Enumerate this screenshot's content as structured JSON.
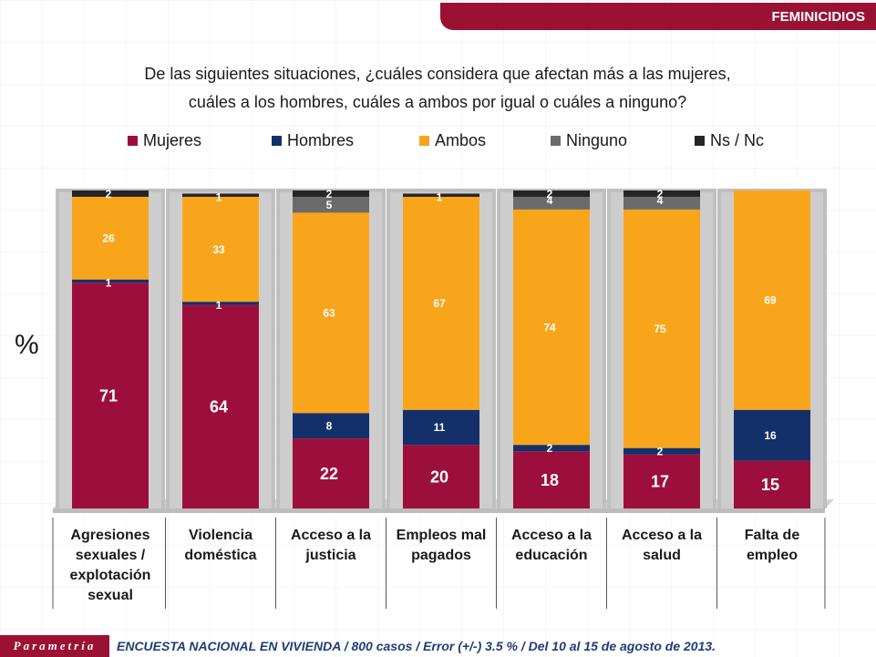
{
  "header": {
    "banner_title": "FEMINICIDIOS",
    "question_line1": "De las siguientes situaciones, ¿cuáles considera que afectan más a las mujeres,",
    "question_line2": "cuáles a los hombres, cuáles a ambos por igual o cuáles a ninguno?"
  },
  "footer": {
    "logo_text": "Parametría",
    "note": "ENCUESTA NACIONAL EN VIVIENDA / 800 casos / Error (+/-) 3.5 % / Del 10 al 15 de agosto de 2013."
  },
  "chart_data": {
    "type": "bar",
    "stacked": true,
    "ylabel": "%",
    "ylim": [
      0,
      100
    ],
    "legend_position": "top",
    "categories": [
      [
        "Agresiones",
        "sexuales /",
        "explotación",
        "sexual"
      ],
      [
        "Violencia",
        "doméstica"
      ],
      [
        "Acceso a la",
        "justicia"
      ],
      [
        "Empleos mal",
        "pagados"
      ],
      [
        "Acceso a la",
        "educación"
      ],
      [
        "Acceso a la",
        "salud"
      ],
      [
        "Falta de",
        "empleo"
      ]
    ],
    "series": [
      {
        "name": "Mujeres",
        "color": "#9c0f3c",
        "values": [
          71,
          64,
          22,
          20,
          18,
          17,
          15
        ]
      },
      {
        "name": "Hombres",
        "color": "#13306b",
        "values": [
          1,
          1,
          8,
          11,
          2,
          2,
          16
        ]
      },
      {
        "name": "Ambos",
        "color": "#f9a51b",
        "values": [
          26,
          33,
          63,
          67,
          74,
          75,
          69
        ]
      },
      {
        "name": "Ninguno",
        "color": "#6b6b6b",
        "values": [
          null,
          null,
          5,
          null,
          4,
          4,
          null
        ]
      },
      {
        "name": "Ns / Nc",
        "color": "#262626",
        "values": [
          2,
          1,
          2,
          1,
          2,
          2,
          null
        ]
      }
    ],
    "value_labels": [
      [
        "71",
        "1",
        "26",
        null,
        "2"
      ],
      [
        "64",
        "1",
        "33",
        null,
        "1"
      ],
      [
        "22",
        "8",
        "63",
        "5",
        "2"
      ],
      [
        "20",
        "11",
        "67",
        null,
        "1"
      ],
      [
        "18",
        "2",
        "74",
        "4",
        "2"
      ],
      [
        "17",
        "2",
        "75",
        "4",
        "2"
      ],
      [
        "15",
        "16",
        "69",
        null,
        null
      ]
    ]
  }
}
